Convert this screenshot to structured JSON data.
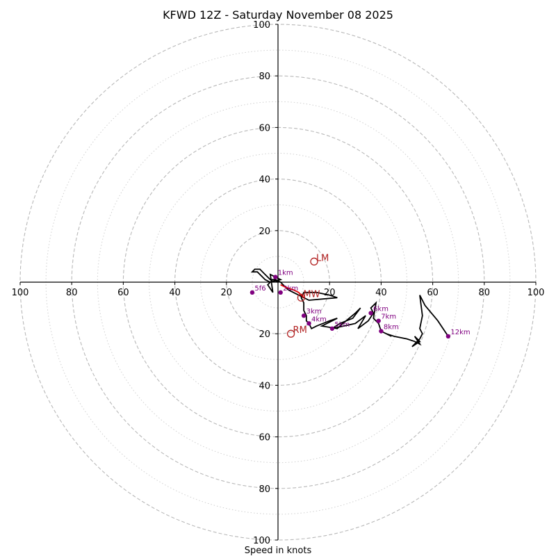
{
  "chart_data": {
    "type": "hodograph",
    "title": "KFWD 12Z - Saturday November 08 2025",
    "xlabel": "Speed in knots",
    "units": "knots",
    "range": 100,
    "rings_major": [
      20,
      40,
      60,
      80,
      100
    ],
    "rings_minor": [
      10,
      30,
      50,
      70,
      90
    ],
    "tick_values": [
      20,
      40,
      60,
      80,
      100
    ],
    "x_tick_labels": [
      "100",
      "80",
      "60",
      "40",
      "20",
      "20",
      "40",
      "60",
      "80",
      "100"
    ],
    "y_tick_labels": [
      "100",
      "80",
      "60",
      "40",
      "20",
      "20",
      "40",
      "60",
      "80",
      "100"
    ],
    "hodograph": {
      "color": "#000000",
      "points": [
        [
          0,
          0
        ],
        [
          -2,
          1
        ],
        [
          -4,
          -1
        ],
        [
          -2,
          -4
        ],
        [
          -3,
          3
        ],
        [
          -1,
          2
        ],
        [
          1,
          1
        ],
        [
          -3,
          0
        ],
        [
          -5,
          1
        ],
        [
          -8,
          4
        ],
        [
          -10,
          4
        ],
        [
          -9,
          5
        ],
        [
          -7,
          5
        ],
        [
          -5,
          3
        ],
        [
          -3,
          1
        ],
        [
          -1,
          1
        ],
        [
          1,
          0
        ],
        [
          2,
          -1
        ],
        [
          4,
          -3
        ],
        [
          8,
          -5
        ],
        [
          12,
          -7
        ],
        [
          23,
          -6
        ],
        [
          20,
          -5
        ],
        [
          15,
          -4
        ],
        [
          10,
          -4
        ],
        [
          9,
          -6
        ],
        [
          10,
          -8
        ],
        [
          10,
          -11
        ],
        [
          11,
          -13
        ],
        [
          11,
          -15
        ],
        [
          12,
          -16
        ],
        [
          13,
          -18
        ],
        [
          15,
          -17
        ],
        [
          20,
          -15
        ],
        [
          23,
          -14
        ],
        [
          17,
          -17
        ],
        [
          23,
          -18
        ],
        [
          24,
          -17
        ],
        [
          30,
          -12
        ],
        [
          32,
          -10
        ],
        [
          29,
          -14
        ],
        [
          24,
          -16
        ],
        [
          21,
          -18
        ],
        [
          30,
          -16
        ],
        [
          34,
          -13
        ],
        [
          31,
          -18
        ],
        [
          35,
          -15
        ],
        [
          37,
          -12
        ],
        [
          36,
          -10
        ],
        [
          38,
          -8
        ],
        [
          37,
          -14
        ],
        [
          39,
          -16
        ],
        [
          40,
          -19
        ],
        [
          44,
          -21
        ],
        [
          42,
          -20
        ],
        [
          45,
          -21
        ],
        [
          50,
          -22
        ],
        [
          53,
          -23
        ],
        [
          55,
          -24
        ],
        [
          53,
          -21
        ],
        [
          55,
          -23
        ],
        [
          52,
          -25
        ],
        [
          55,
          -22
        ],
        [
          56,
          -20
        ],
        [
          55,
          -18
        ],
        [
          56,
          -13
        ],
        [
          55,
          -5
        ],
        [
          57,
          -9
        ],
        [
          62,
          -15
        ],
        [
          66,
          -21
        ]
      ]
    },
    "storm_track": {
      "color": "#dd0000",
      "points": [
        [
          1,
          -1
        ],
        [
          3,
          -2
        ],
        [
          6,
          -3
        ],
        [
          8,
          -4
        ],
        [
          10,
          -6
        ]
      ]
    },
    "height_markers": [
      {
        "label": "1km",
        "u": -1,
        "v": 2
      },
      {
        "label": "5f6",
        "u": -10,
        "v": -4
      },
      {
        "label": "2km",
        "u": 1,
        "v": -4
      },
      {
        "label": "3km",
        "u": 10,
        "v": -13
      },
      {
        "label": "4km",
        "u": 12,
        "v": -16
      },
      {
        "label": "5km",
        "u": 21,
        "v": -18
      },
      {
        "label": "6km",
        "u": 36,
        "v": -12
      },
      {
        "label": "7km",
        "u": 39,
        "v": -15
      },
      {
        "label": "8km",
        "u": 40,
        "v": -19
      },
      {
        "label": "12km",
        "u": 66,
        "v": -21
      }
    ],
    "storm_motions": [
      {
        "label": "LM",
        "u": 14,
        "v": 8
      },
      {
        "label": "RM",
        "u": 5,
        "v": -20
      },
      {
        "label": "MW",
        "u": 9,
        "v": -6
      }
    ],
    "marker_color": "#800080",
    "storm_motion_color": "#b22222"
  }
}
